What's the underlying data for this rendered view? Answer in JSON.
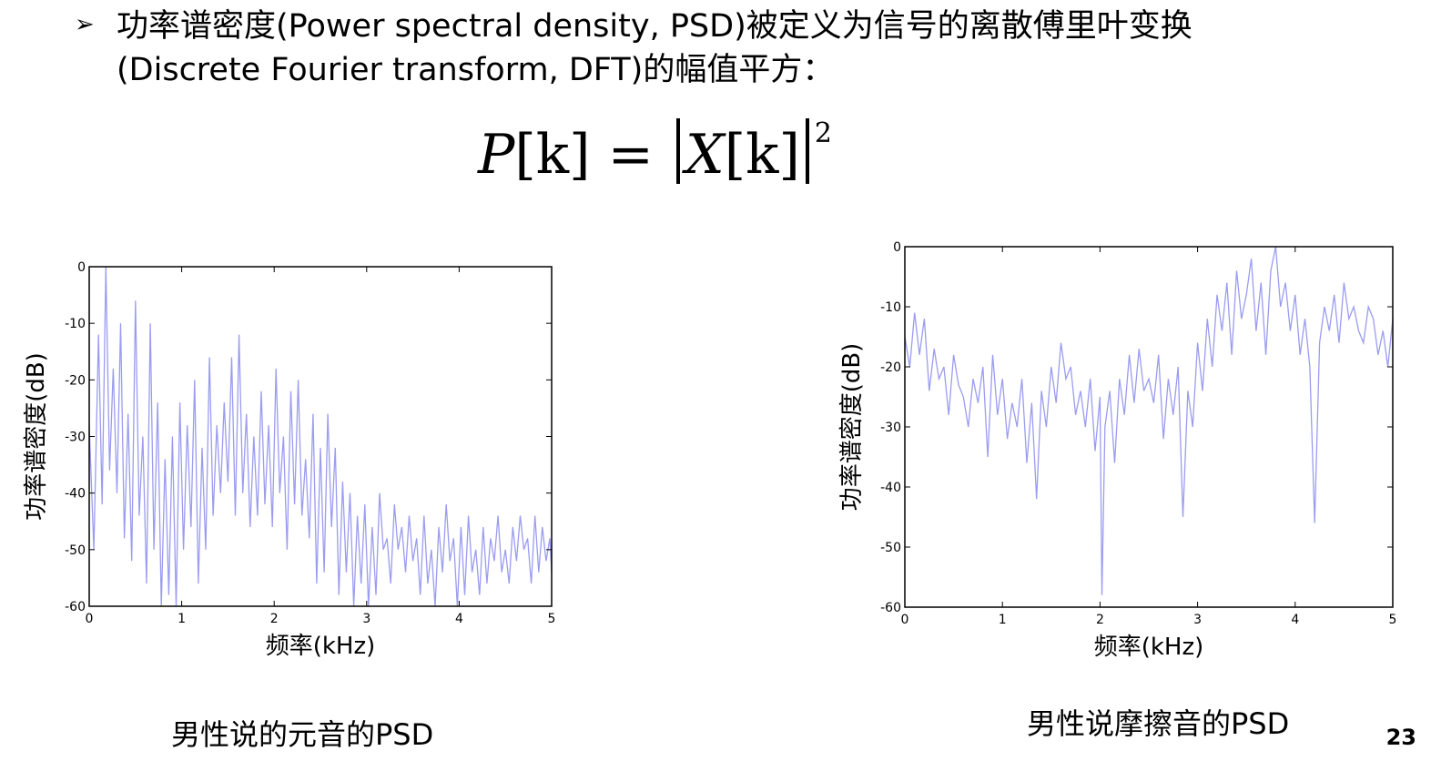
{
  "slide": {
    "bullet": "➢",
    "line1": "功率谱密度(Power spectral density, PSD)被定义为信号的离散傅里叶变换",
    "line2": "(Discrete Fourier transform, DFT)的幅值平方：",
    "formula": {
      "lhs": "P",
      "lhs_arg": "[k]",
      "equals": "=",
      "rhs": "X",
      "rhs_arg": "[k]",
      "power": "2"
    },
    "caption_left": "男性说的元音的PSD",
    "caption_right": "男性说摩擦音的PSD",
    "page_number": "23"
  },
  "chart_data": [
    {
      "type": "line",
      "title": "",
      "xlabel": "频率(kHz)",
      "ylabel": "功率谱密度(dB)",
      "xlim": [
        0,
        5
      ],
      "ylim": [
        -60,
        0
      ],
      "xticks": [
        0,
        1,
        2,
        3,
        4,
        5
      ],
      "yticks": [
        0,
        -10,
        -20,
        -30,
        -40,
        -50,
        -60
      ],
      "line_color": "#9b9cf0",
      "grid": false,
      "series": [
        {
          "x": [
            0,
            0.05,
            0.1,
            0.14,
            0.18,
            0.22,
            0.26,
            0.3,
            0.34,
            0.38,
            0.42,
            0.46,
            0.5,
            0.54,
            0.58,
            0.62,
            0.66,
            0.7,
            0.74,
            0.78,
            0.82,
            0.86,
            0.9,
            0.94,
            0.98,
            1.02,
            1.06,
            1.1,
            1.14,
            1.18,
            1.22,
            1.26,
            1.3,
            1.34,
            1.38,
            1.42,
            1.46,
            1.5,
            1.54,
            1.58,
            1.62,
            1.66,
            1.7,
            1.74,
            1.78,
            1.82,
            1.86,
            1.9,
            1.94,
            1.98,
            2.02,
            2.06,
            2.1,
            2.14,
            2.18,
            2.22,
            2.26,
            2.3,
            2.34,
            2.38,
            2.42,
            2.46,
            2.5,
            2.54,
            2.58,
            2.62,
            2.66,
            2.7,
            2.74,
            2.78,
            2.82,
            2.86,
            2.9,
            2.94,
            2.98,
            3.02,
            3.06,
            3.1,
            3.14,
            3.18,
            3.22,
            3.26,
            3.3,
            3.34,
            3.38,
            3.42,
            3.46,
            3.5,
            3.54,
            3.58,
            3.62,
            3.66,
            3.7,
            3.74,
            3.78,
            3.82,
            3.86,
            3.9,
            3.94,
            3.98,
            4.02,
            4.06,
            4.1,
            4.14,
            4.18,
            4.22,
            4.26,
            4.3,
            4.34,
            4.38,
            4.42,
            4.46,
            4.5,
            4.54,
            4.58,
            4.62,
            4.66,
            4.7,
            4.74,
            4.78,
            4.82,
            4.86,
            4.9,
            4.94,
            4.98,
            5.0
          ],
          "y": [
            -28,
            -50,
            -12,
            -42,
            0,
            -36,
            -18,
            -40,
            -10,
            -48,
            -26,
            -52,
            -6,
            -44,
            -30,
            -56,
            -10,
            -50,
            -24,
            -60,
            -34,
            -58,
            -30,
            -60,
            -24,
            -50,
            -28,
            -46,
            -20,
            -56,
            -32,
            -50,
            -16,
            -44,
            -28,
            -40,
            -24,
            -38,
            -16,
            -44,
            -12,
            -40,
            -26,
            -46,
            -30,
            -44,
            -22,
            -42,
            -28,
            -46,
            -18,
            -40,
            -30,
            -50,
            -22,
            -42,
            -20,
            -44,
            -34,
            -48,
            -26,
            -56,
            -32,
            -54,
            -26,
            -46,
            -32,
            -58,
            -38,
            -54,
            -40,
            -60,
            -44,
            -56,
            -42,
            -60,
            -46,
            -58,
            -40,
            -50,
            -48,
            -56,
            -42,
            -50,
            -46,
            -54,
            -44,
            -52,
            -48,
            -58,
            -44,
            -56,
            -50,
            -60,
            -46,
            -54,
            -42,
            -52,
            -48,
            -60,
            -46,
            -58,
            -44,
            -54,
            -50,
            -58,
            -46,
            -56,
            -48,
            -52,
            -44,
            -54,
            -50,
            -56,
            -46,
            -52,
            -44,
            -50,
            -48,
            -56,
            -44,
            -54,
            -46,
            -52,
            -48,
            -54
          ]
        }
      ]
    },
    {
      "type": "line",
      "title": "",
      "xlabel": "频率(kHz)",
      "ylabel": "功率谱密度(dB)",
      "xlim": [
        0,
        5
      ],
      "ylim": [
        -60,
        0
      ],
      "xticks": [
        0,
        1,
        2,
        3,
        4,
        5
      ],
      "yticks": [
        0,
        -10,
        -20,
        -30,
        -40,
        -50,
        -60
      ],
      "line_color": "#9b9cf0",
      "grid": false,
      "series": [
        {
          "x": [
            0,
            0.05,
            0.1,
            0.15,
            0.2,
            0.25,
            0.3,
            0.35,
            0.4,
            0.45,
            0.5,
            0.55,
            0.6,
            0.65,
            0.7,
            0.75,
            0.8,
            0.85,
            0.9,
            0.95,
            1.0,
            1.05,
            1.1,
            1.15,
            1.2,
            1.25,
            1.3,
            1.35,
            1.4,
            1.45,
            1.5,
            1.55,
            1.6,
            1.65,
            1.7,
            1.75,
            1.8,
            1.85,
            1.9,
            1.95,
            2.0,
            2.02,
            2.05,
            2.1,
            2.15,
            2.2,
            2.25,
            2.3,
            2.35,
            2.4,
            2.45,
            2.5,
            2.55,
            2.6,
            2.65,
            2.7,
            2.75,
            2.8,
            2.85,
            2.9,
            2.95,
            3.0,
            3.05,
            3.1,
            3.15,
            3.2,
            3.25,
            3.3,
            3.35,
            3.4,
            3.45,
            3.5,
            3.55,
            3.6,
            3.65,
            3.7,
            3.75,
            3.8,
            3.85,
            3.9,
            3.95,
            4.0,
            4.05,
            4.1,
            4.15,
            4.2,
            4.25,
            4.3,
            4.35,
            4.4,
            4.45,
            4.5,
            4.55,
            4.6,
            4.65,
            4.7,
            4.75,
            4.8,
            4.85,
            4.9,
            4.95,
            5.0
          ],
          "y": [
            -15,
            -20,
            -11,
            -18,
            -12,
            -24,
            -17,
            -22,
            -20,
            -28,
            -18,
            -23,
            -25,
            -30,
            -22,
            -26,
            -20,
            -35,
            -18,
            -28,
            -22,
            -32,
            -26,
            -30,
            -22,
            -36,
            -26,
            -42,
            -24,
            -30,
            -20,
            -26,
            -16,
            -22,
            -20,
            -28,
            -24,
            -30,
            -22,
            -34,
            -25,
            -58,
            -30,
            -24,
            -36,
            -22,
            -28,
            -18,
            -26,
            -17,
            -24,
            -22,
            -26,
            -18,
            -32,
            -22,
            -28,
            -20,
            -45,
            -24,
            -30,
            -16,
            -24,
            -12,
            -20,
            -8,
            -14,
            -6,
            -18,
            -4,
            -12,
            -8,
            -2,
            -14,
            -6,
            -18,
            -4,
            0,
            -10,
            -6,
            -14,
            -8,
            -18,
            -12,
            -20,
            -46,
            -16,
            -10,
            -14,
            -8,
            -16,
            -6,
            -12,
            -10,
            -14,
            -16,
            -10,
            -12,
            -18,
            -14,
            -20,
            -12
          ]
        }
      ]
    }
  ]
}
